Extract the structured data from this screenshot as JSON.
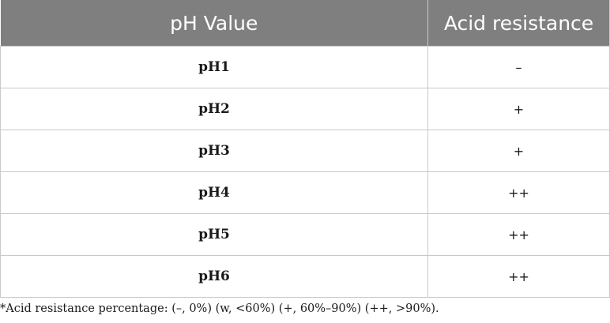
{
  "table": {
    "headers": [
      "pH Value",
      "Acid resistance"
    ],
    "rows": [
      {
        "ph": "pH1",
        "resistance": "–"
      },
      {
        "ph": "pH2",
        "resistance": "+"
      },
      {
        "ph": "pH3",
        "resistance": "+"
      },
      {
        "ph": "pH4",
        "resistance": "++"
      },
      {
        "ph": "pH5",
        "resistance": "++"
      },
      {
        "ph": "pH6",
        "resistance": "++"
      }
    ]
  },
  "footnote": "*Acid resistance percentage: (–, 0%) (w, <60%) (+, 60%–90%) (++, >90%).",
  "colors": {
    "header_background": "#7f7f7f",
    "header_text": "#ffffff",
    "grid_lines": "#c9c9c9"
  }
}
